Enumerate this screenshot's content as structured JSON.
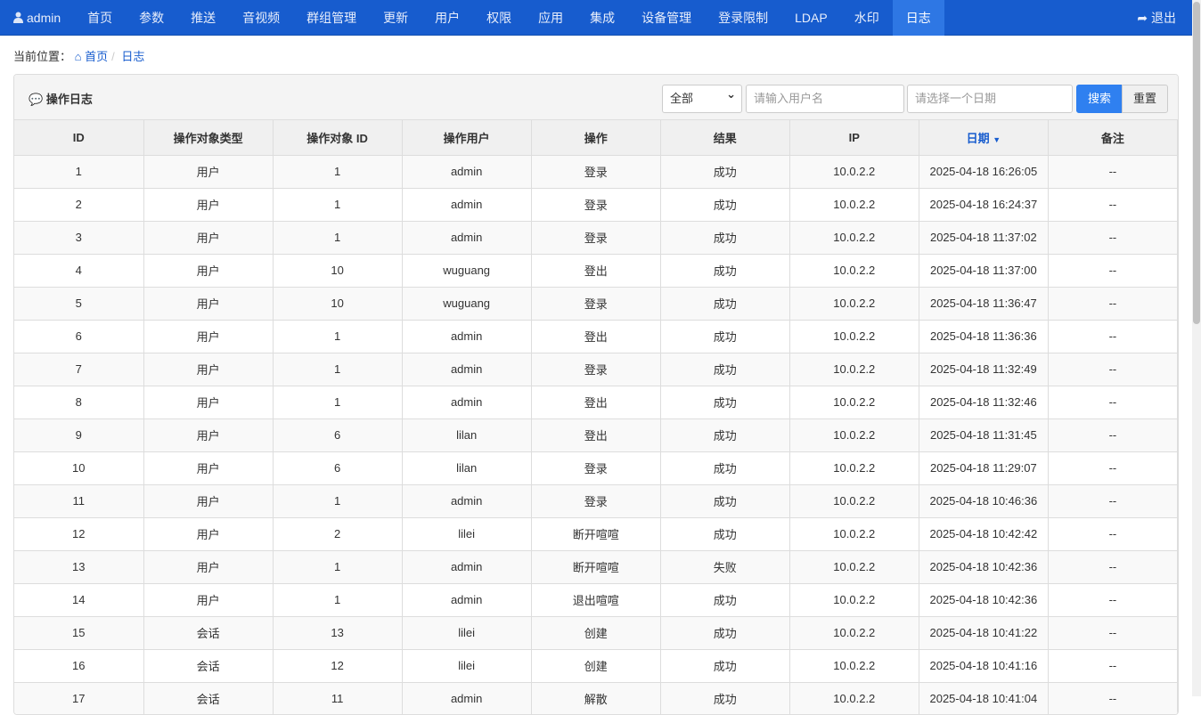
{
  "nav": {
    "user": "admin",
    "items": [
      "首页",
      "参数",
      "推送",
      "音视频",
      "群组管理",
      "更新",
      "用户",
      "权限",
      "应用",
      "集成",
      "设备管理",
      "登录限制",
      "LDAP",
      "水印",
      "日志"
    ],
    "active": "日志",
    "logout": "退出"
  },
  "breadcrumb": {
    "label": "当前位置：",
    "home": "首页",
    "current": "日志"
  },
  "panel": {
    "title": "操作日志",
    "filter_select": "全部",
    "username_placeholder": "请输入用户名",
    "date_placeholder": "请选择一个日期",
    "search": "搜索",
    "reset": "重置"
  },
  "table": {
    "columns": [
      "ID",
      "操作对象类型",
      "操作对象 ID",
      "操作用户",
      "操作",
      "结果",
      "IP",
      "日期",
      "备注"
    ],
    "sorted_column": "日期",
    "rows": [
      [
        "1",
        "用户",
        "1",
        "admin",
        "登录",
        "成功",
        "10.0.2.2",
        "2025-04-18 16:26:05",
        "--"
      ],
      [
        "2",
        "用户",
        "1",
        "admin",
        "登录",
        "成功",
        "10.0.2.2",
        "2025-04-18 16:24:37",
        "--"
      ],
      [
        "3",
        "用户",
        "1",
        "admin",
        "登录",
        "成功",
        "10.0.2.2",
        "2025-04-18 11:37:02",
        "--"
      ],
      [
        "4",
        "用户",
        "10",
        "wuguang",
        "登出",
        "成功",
        "10.0.2.2",
        "2025-04-18 11:37:00",
        "--"
      ],
      [
        "5",
        "用户",
        "10",
        "wuguang",
        "登录",
        "成功",
        "10.0.2.2",
        "2025-04-18 11:36:47",
        "--"
      ],
      [
        "6",
        "用户",
        "1",
        "admin",
        "登出",
        "成功",
        "10.0.2.2",
        "2025-04-18 11:36:36",
        "--"
      ],
      [
        "7",
        "用户",
        "1",
        "admin",
        "登录",
        "成功",
        "10.0.2.2",
        "2025-04-18 11:32:49",
        "--"
      ],
      [
        "8",
        "用户",
        "1",
        "admin",
        "登出",
        "成功",
        "10.0.2.2",
        "2025-04-18 11:32:46",
        "--"
      ],
      [
        "9",
        "用户",
        "6",
        "lilan",
        "登出",
        "成功",
        "10.0.2.2",
        "2025-04-18 11:31:45",
        "--"
      ],
      [
        "10",
        "用户",
        "6",
        "lilan",
        "登录",
        "成功",
        "10.0.2.2",
        "2025-04-18 11:29:07",
        "--"
      ],
      [
        "11",
        "用户",
        "1",
        "admin",
        "登录",
        "成功",
        "10.0.2.2",
        "2025-04-18 10:46:36",
        "--"
      ],
      [
        "12",
        "用户",
        "2",
        "lilei",
        "断开喧喧",
        "成功",
        "10.0.2.2",
        "2025-04-18 10:42:42",
        "--"
      ],
      [
        "13",
        "用户",
        "1",
        "admin",
        "断开喧喧",
        "失败",
        "10.0.2.2",
        "2025-04-18 10:42:36",
        "--"
      ],
      [
        "14",
        "用户",
        "1",
        "admin",
        "退出喧喧",
        "成功",
        "10.0.2.2",
        "2025-04-18 10:42:36",
        "--"
      ],
      [
        "15",
        "会话",
        "13",
        "lilei",
        "创建",
        "成功",
        "10.0.2.2",
        "2025-04-18 10:41:22",
        "--"
      ],
      [
        "16",
        "会话",
        "12",
        "lilei",
        "创建",
        "成功",
        "10.0.2.2",
        "2025-04-18 10:41:16",
        "--"
      ],
      [
        "17",
        "会话",
        "11",
        "admin",
        "解散",
        "成功",
        "10.0.2.2",
        "2025-04-18 10:41:04",
        "--"
      ]
    ]
  }
}
